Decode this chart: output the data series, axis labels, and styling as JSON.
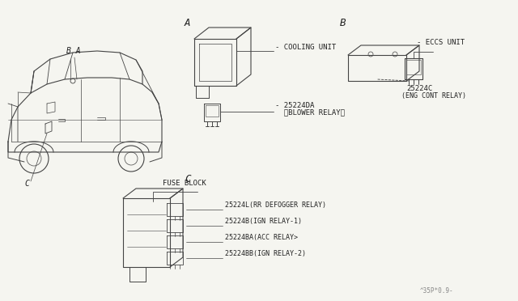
{
  "background_color": "#f5f5f0",
  "line_color": "#444444",
  "text_color": "#222222",
  "label_A": "A",
  "label_B": "B",
  "label_C": "C",
  "label_BA": "B A",
  "cooling_unit_label": "- COOLING UNIT",
  "blower_relay_part": "- 25224DA",
  "blower_relay_label": "  〈BLOWER RELAY〉",
  "eccs_unit_label": "ECCS UNIT",
  "eng_cont_part": "25224C",
  "eng_cont_label": "(ENG CONT RELAY)",
  "fuse_block_label": "FUSE BLOCK",
  "relay1_part": "25224L(RR DEFOGGER RELAY)",
  "relay2_part": "25224B(IGN RELAY-1)",
  "relay3_part": "25224BA(ACC RELAY>",
  "relay4_part": "25224BB(IGN RELAY-2)",
  "footer": "^35P*0.9-",
  "font_size_section": 8,
  "font_size_label": 6.5,
  "font_size_part": 6.0
}
